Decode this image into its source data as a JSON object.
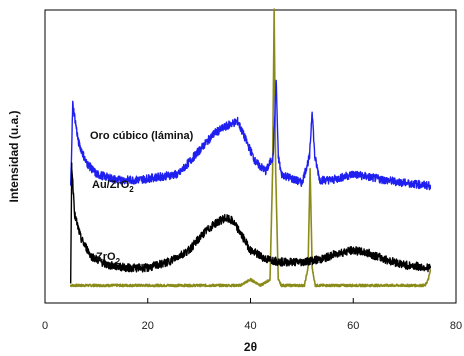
{
  "chart_data": {
    "type": "line",
    "xlabel": "2θ",
    "ylabel": "Intensidad (u.a.)",
    "xlim": [
      0,
      80
    ],
    "x_ticks": [
      "0",
      "20",
      "40",
      "60",
      "80"
    ],
    "y_tick_labels": false,
    "grid": false,
    "legend": "none",
    "series": [
      {
        "name": "Oro cúbico (lámina)",
        "color": "#8b8b1a",
        "label_parts": [
          {
            "text": "Oro cúbico (lámina)",
            "sub": false
          }
        ],
        "points": [
          [
            5,
            0.06
          ],
          [
            38,
            0.06
          ],
          [
            40,
            0.08
          ],
          [
            42,
            0.06
          ],
          [
            43.8,
            0.08
          ],
          [
            44.3,
            0.45
          ],
          [
            44.6,
            1.0
          ],
          [
            44.9,
            0.45
          ],
          [
            45.4,
            0.08
          ],
          [
            46,
            0.06
          ],
          [
            50.5,
            0.06
          ],
          [
            51.2,
            0.12
          ],
          [
            51.6,
            0.46
          ],
          [
            52.0,
            0.12
          ],
          [
            52.6,
            0.06
          ],
          [
            74,
            0.06
          ],
          [
            74.6,
            0.08
          ],
          [
            75,
            0.11
          ]
        ]
      },
      {
        "name": "Au/ZrO2",
        "color": "#1f1ff0",
        "label_parts": [
          {
            "text": "Au/ZrO",
            "sub": false
          },
          {
            "text": "2",
            "sub": true
          }
        ],
        "points": [
          [
            5,
            0.4
          ],
          [
            5.4,
            0.68
          ],
          [
            6.5,
            0.55
          ],
          [
            8,
            0.48
          ],
          [
            10,
            0.44
          ],
          [
            14,
            0.42
          ],
          [
            18,
            0.42
          ],
          [
            22,
            0.43
          ],
          [
            26,
            0.44
          ],
          [
            30,
            0.52
          ],
          [
            33,
            0.58
          ],
          [
            36,
            0.61
          ],
          [
            37.5,
            0.62
          ],
          [
            39,
            0.56
          ],
          [
            41,
            0.48
          ],
          [
            43,
            0.45
          ],
          [
            44.4,
            0.5
          ],
          [
            45.0,
            0.76
          ],
          [
            45.4,
            0.5
          ],
          [
            46,
            0.44
          ],
          [
            50,
            0.41
          ],
          [
            51.5,
            0.5
          ],
          [
            52.0,
            0.66
          ],
          [
            52.5,
            0.5
          ],
          [
            53.5,
            0.42
          ],
          [
            56,
            0.42
          ],
          [
            58,
            0.43
          ],
          [
            60,
            0.44
          ],
          [
            63,
            0.43
          ],
          [
            66,
            0.42
          ],
          [
            70,
            0.41
          ],
          [
            75,
            0.4
          ]
        ]
      },
      {
        "name": "ZrO2",
        "color": "#000000",
        "label_parts": [
          {
            "text": "ZrO",
            "sub": false
          },
          {
            "text": "2",
            "sub": true
          }
        ],
        "points": [
          [
            5,
            0.06
          ],
          [
            5.2,
            0.47
          ],
          [
            5.8,
            0.3
          ],
          [
            7,
            0.22
          ],
          [
            9,
            0.16
          ],
          [
            12,
            0.13
          ],
          [
            16,
            0.12
          ],
          [
            20,
            0.12
          ],
          [
            24,
            0.14
          ],
          [
            28,
            0.18
          ],
          [
            31,
            0.24
          ],
          [
            33,
            0.27
          ],
          [
            35,
            0.29
          ],
          [
            36.5,
            0.28
          ],
          [
            38,
            0.24
          ],
          [
            40,
            0.18
          ],
          [
            43,
            0.15
          ],
          [
            46,
            0.14
          ],
          [
            50,
            0.14
          ],
          [
            54,
            0.15
          ],
          [
            57,
            0.17
          ],
          [
            60,
            0.18
          ],
          [
            63,
            0.17
          ],
          [
            66,
            0.15
          ],
          [
            70,
            0.13
          ],
          [
            75,
            0.12
          ]
        ]
      }
    ]
  }
}
